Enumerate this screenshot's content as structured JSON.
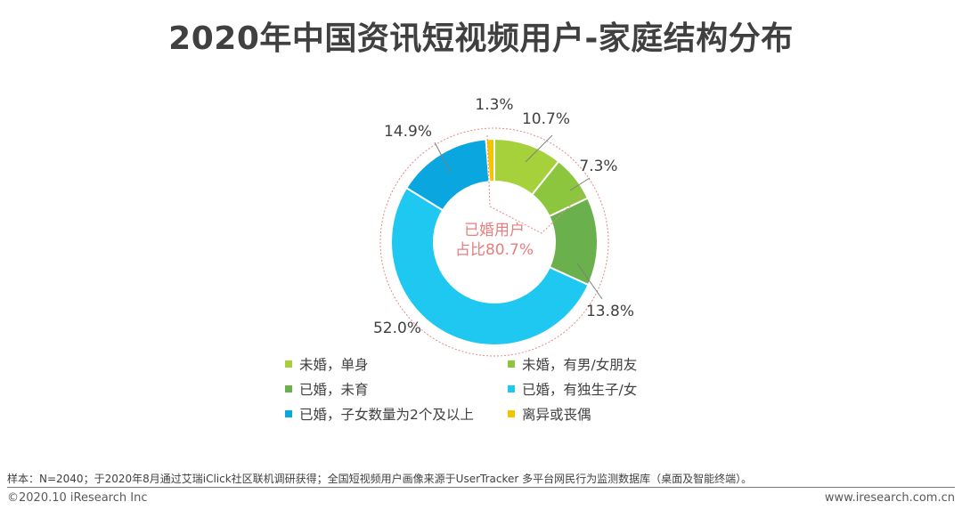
{
  "title": "2020年中国资讯短视频用户-家庭结构分布",
  "chart_data": {
    "type": "pie",
    "variant": "donut",
    "slices": [
      {
        "label": "未婚，单身",
        "value": 10.7,
        "display": "10.7%",
        "color": "#a6d13a"
      },
      {
        "label": "未婚，有男/女朋友",
        "value": 7.3,
        "display": "7.3%",
        "color": "#8cc63f"
      },
      {
        "label": "已婚，未育",
        "value": 13.8,
        "display": "13.8%",
        "color": "#6ab04c"
      },
      {
        "label": "已婚，有独生子/女",
        "value": 52.0,
        "display": "52.0%",
        "color": "#1ec8f0"
      },
      {
        "label": "已婚，子女数量为2个及以上",
        "value": 14.9,
        "display": "14.9%",
        "color": "#0aa6e0"
      },
      {
        "label": "离异或丧偶",
        "value": 1.3,
        "display": "1.3%",
        "color": "#f5c400"
      }
    ],
    "center_label": [
      "已婚用户",
      "占比80.7%"
    ],
    "legend_placement": "bottom"
  },
  "footer": {
    "note": "样本：N=2040；于2020年8月通过艾瑞iClick社区联机调研获得；全国短视频用户画像来源于UserTracker 多平台网民行为监测数据库（桌面及智能终端）。",
    "copyright": "©2020.10 iResearch Inc",
    "website": "www.iresearch.com.cn"
  }
}
